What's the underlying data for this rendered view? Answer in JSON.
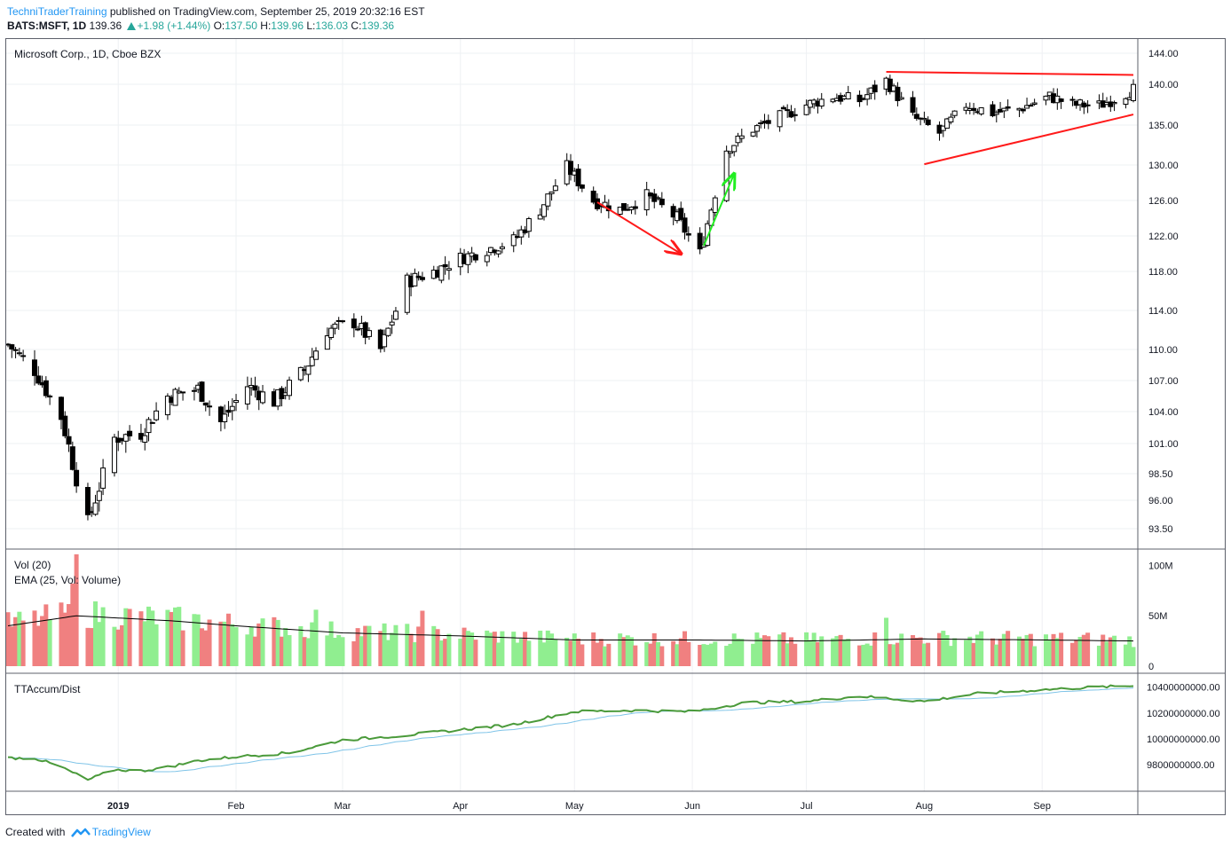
{
  "header": {
    "author": "TechniTraderTraining",
    "published": "published on TradingView.com, September 25, 2019 20:32:16 EST",
    "symbol": "BATS:MSFT, 1D",
    "last": "139.36",
    "change": "+1.98 (+1.44%)",
    "o_label": "O:",
    "o_val": "137.50",
    "h_label": "H:",
    "h_val": "139.96",
    "l_label": "L:",
    "l_val": "136.03",
    "c_label": "C:",
    "c_val": "139.36"
  },
  "panes": {
    "price_title": "Microsoft Corp., 1D, Cboe BZX",
    "vol_title": "Vol (20)",
    "vol_ema_title": "EMA (25, Vol: Volume)",
    "accum_title": "TTAccum/Dist"
  },
  "footer": {
    "created": "Created with",
    "brand": "TradingView"
  },
  "colors": {
    "up_volume": "#90ee90",
    "down_volume": "#f08080",
    "annotation_red": "#ff1a1a",
    "annotation_green": "#22ee22",
    "accum_line": "#4a9a3a",
    "accum_ma": "#7fc4e8",
    "vol_ema": "#000000"
  },
  "chart_data": [
    {
      "type": "candlestick",
      "title": "Microsoft Corp., 1D, Cboe BZX",
      "x_ticks": [
        "2019",
        "Feb",
        "Mar",
        "Apr",
        "May",
        "Jun",
        "Jul",
        "Aug",
        "Sep"
      ],
      "y_ticks": [
        "144.00",
        "140.00",
        "135.00",
        "130.00",
        "126.00",
        "122.00",
        "118.00",
        "114.00",
        "110.00",
        "107.00",
        "104.00",
        "101.00",
        "98.50",
        "96.00",
        "93.50"
      ],
      "ylim": [
        91.5,
        144.0
      ],
      "x_range": [
        "2018-12-03",
        "2019-09-25"
      ],
      "approx_close_path": [
        [
          "2018-12-03",
          110.5
        ],
        [
          "2018-12-10",
          108.0
        ],
        [
          "2018-12-17",
          103.5
        ],
        [
          "2018-12-24",
          94.0
        ],
        [
          "2018-12-31",
          101.5
        ],
        [
          "2019-01-07",
          102.0
        ],
        [
          "2019-01-14",
          105.5
        ],
        [
          "2019-01-22",
          106.2
        ],
        [
          "2019-01-28",
          103.0
        ],
        [
          "2019-02-04",
          106.5
        ],
        [
          "2019-02-11",
          105.0
        ],
        [
          "2019-02-19",
          108.0
        ],
        [
          "2019-02-25",
          112.0
        ],
        [
          "2019-03-04",
          112.8
        ],
        [
          "2019-03-11",
          110.0
        ],
        [
          "2019-03-18",
          117.0
        ],
        [
          "2019-03-25",
          118.0
        ],
        [
          "2019-04-01",
          119.5
        ],
        [
          "2019-04-08",
          120.5
        ],
        [
          "2019-04-15",
          121.5
        ],
        [
          "2019-04-22",
          125.0
        ],
        [
          "2019-04-29",
          129.8
        ],
        [
          "2019-05-06",
          126.0
        ],
        [
          "2019-05-13",
          125.0
        ],
        [
          "2019-05-20",
          126.5
        ],
        [
          "2019-05-28",
          124.0
        ],
        [
          "2019-06-03",
          120.0
        ],
        [
          "2019-06-10",
          132.0
        ],
        [
          "2019-06-17",
          134.5
        ],
        [
          "2019-06-24",
          136.0
        ],
        [
          "2019-07-01",
          137.5
        ],
        [
          "2019-07-08",
          138.5
        ],
        [
          "2019-07-15",
          138.0
        ],
        [
          "2019-07-22",
          140.5
        ],
        [
          "2019-07-29",
          136.0
        ],
        [
          "2019-08-05",
          134.0
        ],
        [
          "2019-08-12",
          137.5
        ],
        [
          "2019-08-19",
          136.5
        ],
        [
          "2019-08-26",
          137.0
        ],
        [
          "2019-09-03",
          138.5
        ],
        [
          "2019-09-09",
          137.5
        ],
        [
          "2019-09-16",
          137.4
        ],
        [
          "2019-09-25",
          139.36
        ]
      ],
      "annotations": [
        {
          "type": "trendline",
          "color": "red",
          "from": [
            "2019-07-22",
            141.6
          ],
          "to": [
            "2019-09-25",
            141.2
          ]
        },
        {
          "type": "trendline",
          "color": "red",
          "from": [
            "2019-08-01",
            130.1
          ],
          "to": [
            "2019-09-25",
            136.3
          ]
        },
        {
          "type": "arrow",
          "color": "red",
          "from": [
            "2019-05-07",
            125.8
          ],
          "to": [
            "2019-05-29",
            120.0
          ]
        },
        {
          "type": "arrow",
          "color": "green",
          "from": [
            "2019-06-04",
            120.9
          ],
          "to": [
            "2019-06-12",
            129.0
          ]
        }
      ]
    },
    {
      "type": "bar",
      "title": "Vol (20)",
      "y_ticks": [
        "100M",
        "50M",
        "0"
      ],
      "ylim": [
        0,
        110
      ],
      "unit": "M",
      "approx_values_note_free": true,
      "peak_dates": [
        [
          "2018-12-21",
          111
        ],
        [
          "2018-12-20",
          82
        ],
        [
          "2019-02-22",
          56
        ],
        [
          "2019-03-22",
          55
        ],
        [
          "2019-07-22",
          48
        ]
      ],
      "ema_series_name": "EMA (25, Vol: Volume)",
      "ema_path": [
        [
          "2018-12-03",
          40
        ],
        [
          "2018-12-21",
          50
        ],
        [
          "2019-01-15",
          45
        ],
        [
          "2019-02-01",
          40
        ],
        [
          "2019-03-01",
          33
        ],
        [
          "2019-04-01",
          30
        ],
        [
          "2019-05-01",
          26
        ],
        [
          "2019-06-01",
          26
        ],
        [
          "2019-07-01",
          25
        ],
        [
          "2019-08-01",
          27
        ],
        [
          "2019-09-01",
          26
        ],
        [
          "2019-09-25",
          25
        ]
      ]
    },
    {
      "type": "line",
      "title": "TTAccum/Dist",
      "y_ticks": [
        "10400000000.00",
        "10200000000.00",
        "10000000000.00",
        "9800000000.00"
      ],
      "ylim": [
        9620000000,
        10460000000
      ],
      "path": [
        [
          "2018-12-03",
          9850000000
        ],
        [
          "2018-12-10",
          9850000000
        ],
        [
          "2018-12-17",
          9780000000
        ],
        [
          "2018-12-24",
          9680000000
        ],
        [
          "2018-12-31",
          9760000000
        ],
        [
          "2019-01-07",
          9750000000
        ],
        [
          "2019-01-14",
          9780000000
        ],
        [
          "2019-01-22",
          9830000000
        ],
        [
          "2019-02-01",
          9860000000
        ],
        [
          "2019-02-15",
          9890000000
        ],
        [
          "2019-03-01",
          9990000000
        ],
        [
          "2019-03-15",
          10020000000
        ],
        [
          "2019-04-01",
          10070000000
        ],
        [
          "2019-04-15",
          10110000000
        ],
        [
          "2019-05-01",
          10210000000
        ],
        [
          "2019-05-15",
          10220000000
        ],
        [
          "2019-06-01",
          10210000000
        ],
        [
          "2019-06-15",
          10280000000
        ],
        [
          "2019-07-01",
          10290000000
        ],
        [
          "2019-07-15",
          10330000000
        ],
        [
          "2019-08-01",
          10290000000
        ],
        [
          "2019-08-15",
          10350000000
        ],
        [
          "2019-09-01",
          10380000000
        ],
        [
          "2019-09-15",
          10400000000
        ],
        [
          "2019-09-25",
          10410000000
        ]
      ]
    }
  ]
}
